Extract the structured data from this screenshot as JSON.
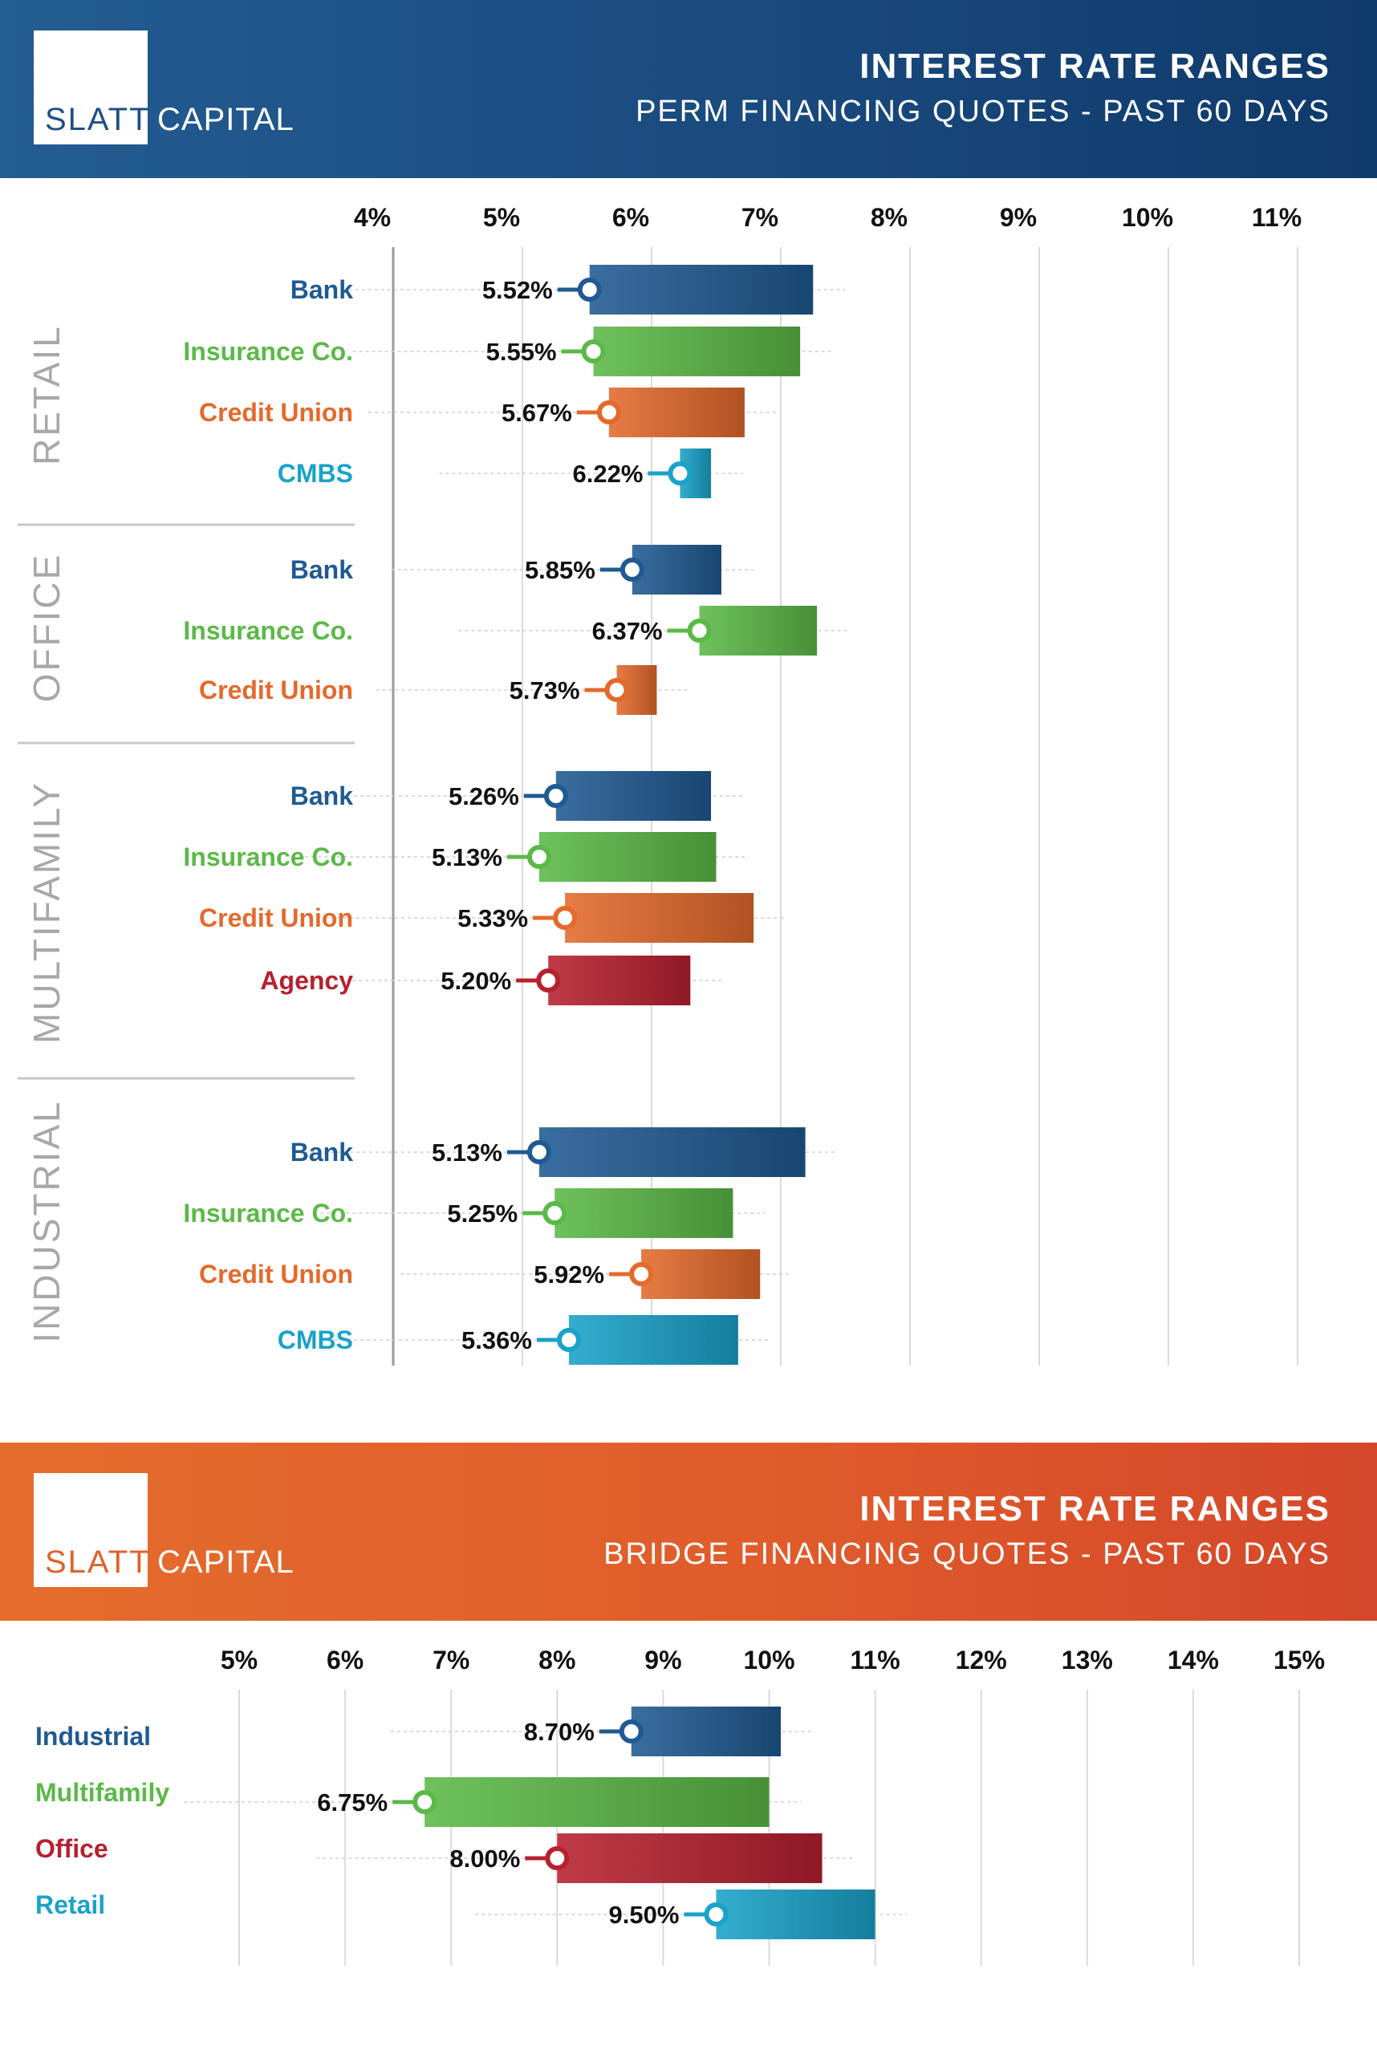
{
  "colors": {
    "bank": "#1f5a92",
    "insurance": "#5bb947",
    "credit_union": "#e4692b",
    "cmbs": "#1aa2c9",
    "agency": "#b7202f",
    "industrial": "#1f5a92",
    "multifamily": "#5bb947",
    "office": "#b7202f",
    "retail": "#1aa2c9"
  },
  "perm": {
    "logo": {
      "slatt": "SLATT",
      "capital": "CAPITAL"
    },
    "title": "INTEREST RATE RANGES",
    "subtitle": "PERM FINANCING QUOTES - PAST 60 DAYS"
  },
  "bridge": {
    "logo": {
      "slatt": "SLATT",
      "capital": "CAPITAL"
    },
    "title": "INTEREST RATE RANGES",
    "subtitle": "BRIDGE FINANCING QUOTES - PAST 60 DAYS"
  },
  "chart_data": [
    {
      "type": "bar",
      "subtype": "floating-range",
      "title": "INTEREST RATE RANGES",
      "subtitle": "PERM FINANCING QUOTES - PAST 60 DAYS",
      "xlim": [
        4,
        11
      ],
      "tick_labels": [
        "4%",
        "5%",
        "6%",
        "7%",
        "8%",
        "9%",
        "10%",
        "11%"
      ],
      "ticks": [
        4,
        5,
        6,
        7,
        8,
        9,
        10,
        11
      ],
      "grid": true,
      "groups": [
        {
          "name": "RETAIL",
          "rows": [
            {
              "label": "Bank",
              "color_key": "bank",
              "low": 5.52,
              "high": 7.25,
              "low_label": "5.52%"
            },
            {
              "label": "Insurance Co.",
              "color_key": "insurance",
              "low": 5.55,
              "high": 7.15,
              "low_label": "5.55%"
            },
            {
              "label": "Credit Union",
              "color_key": "credit_union",
              "low": 5.67,
              "high": 6.72,
              "low_label": "5.67%"
            },
            {
              "label": "CMBS",
              "color_key": "cmbs",
              "low": 6.22,
              "high": 6.46,
              "low_label": "6.22%"
            }
          ]
        },
        {
          "name": "OFFICE",
          "rows": [
            {
              "label": "Bank",
              "color_key": "bank",
              "low": 5.85,
              "high": 6.54,
              "low_label": "5.85%"
            },
            {
              "label": "Insurance Co.",
              "color_key": "insurance",
              "low": 6.37,
              "high": 7.28,
              "low_label": "6.37%"
            },
            {
              "label": "Credit Union",
              "color_key": "credit_union",
              "low": 5.73,
              "high": 6.04,
              "low_label": "5.73%"
            }
          ]
        },
        {
          "name": "MULTIFAMILY",
          "rows": [
            {
              "label": "Bank",
              "color_key": "bank",
              "low": 5.26,
              "high": 6.46,
              "low_label": "5.26%"
            },
            {
              "label": "Insurance Co.",
              "color_key": "insurance",
              "low": 5.13,
              "high": 6.5,
              "low_label": "5.13%"
            },
            {
              "label": "Credit Union",
              "color_key": "credit_union",
              "low": 5.33,
              "high": 6.79,
              "low_label": "5.33%"
            },
            {
              "label": "Agency",
              "color_key": "agency",
              "low": 5.2,
              "high": 6.3,
              "low_label": "5.20%"
            }
          ]
        },
        {
          "name": "INDUSTRIAL",
          "rows": [
            {
              "label": "Bank",
              "color_key": "bank",
              "low": 5.13,
              "high": 7.19,
              "low_label": "5.13%"
            },
            {
              "label": "Insurance Co.",
              "color_key": "insurance",
              "low": 5.25,
              "high": 6.63,
              "low_label": "5.25%"
            },
            {
              "label": "Credit Union",
              "color_key": "credit_union",
              "low": 5.92,
              "high": 6.84,
              "low_label": "5.92%"
            },
            {
              "label": "CMBS",
              "color_key": "cmbs",
              "low": 5.36,
              "high": 6.67,
              "low_label": "5.36%"
            }
          ]
        }
      ]
    },
    {
      "type": "bar",
      "subtype": "floating-range",
      "title": "INTEREST RATE RANGES",
      "subtitle": "BRIDGE FINANCING QUOTES - PAST 60 DAYS",
      "xlim": [
        5,
        15
      ],
      "tick_labels": [
        "5%",
        "6%",
        "7%",
        "8%",
        "9%",
        "10%",
        "11%",
        "12%",
        "13%",
        "14%",
        "15%"
      ],
      "ticks": [
        5,
        6,
        7,
        8,
        9,
        10,
        11,
        12,
        13,
        14,
        15
      ],
      "grid": true,
      "rows": [
        {
          "label": "Industrial",
          "color_key": "industrial",
          "low": 8.7,
          "high": 10.11,
          "low_label": "8.70%"
        },
        {
          "label": "Multifamily",
          "color_key": "multifamily",
          "low": 6.75,
          "high": 10.0,
          "low_label": "6.75%"
        },
        {
          "label": "Office",
          "color_key": "office",
          "low": 8.0,
          "high": 10.5,
          "low_label": "8.00%"
        },
        {
          "label": "Retail",
          "color_key": "retail",
          "low": 9.5,
          "high": 11.0,
          "low_label": "9.50%"
        }
      ]
    }
  ]
}
